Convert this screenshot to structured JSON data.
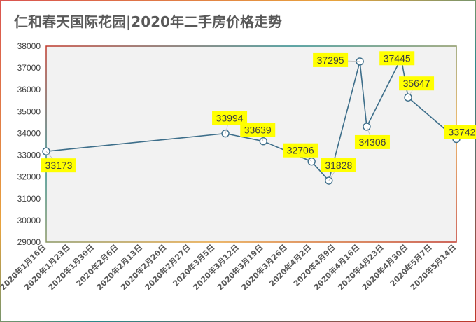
{
  "chart_data": {
    "type": "line",
    "title": "仁和春天国际花园|2020年二手房价格走势",
    "xlabel": "",
    "ylabel": "",
    "ylim": [
      29000,
      38000
    ],
    "ytick_step": 1000,
    "x_ticks": [
      "2020年1月16日",
      "2020年1月23日",
      "2020年1月30日",
      "2020年2月6日",
      "2020年2月13日",
      "2020年2月20日",
      "2020年2月27日",
      "2020年3月5日",
      "2020年3月12日",
      "2020年3月19日",
      "2020年3月26日",
      "2020年4月2日",
      "2020年4月9日",
      "2020年4月16日",
      "2020年4月23日",
      "2020年4月30日",
      "2020年5月7日",
      "2020年5月14日"
    ],
    "xlim": [
      "2020-01-16",
      "2020-05-14"
    ],
    "grid": false,
    "legend": "none",
    "series": [
      {
        "points": [
          {
            "x": "2020-01-16",
            "y": 33173
          },
          {
            "x": "2020-03-08",
            "y": 33994
          },
          {
            "x": "2020-03-19",
            "y": 33639
          },
          {
            "x": "2020-04-02",
            "y": 32706
          },
          {
            "x": "2020-04-07",
            "y": 31828
          },
          {
            "x": "2020-04-16",
            "y": 37295
          },
          {
            "x": "2020-04-18",
            "y": 34306
          },
          {
            "x": "2020-04-28",
            "y": 37445
          },
          {
            "x": "2020-04-30",
            "y": 35647
          },
          {
            "x": "2020-05-14",
            "y": 33742
          }
        ],
        "color": "#3d6e8a"
      }
    ],
    "data_labels": [
      "33173",
      "33994",
      "33639",
      "32706",
      "31828",
      "37295",
      "34306",
      "37445",
      "35647",
      "33742"
    ],
    "colors": {
      "line": "#3d6e8a",
      "marker_fill": "#ffffff",
      "label_bg": "#ffff00",
      "plot_bg": "#f2f2f2",
      "title": "#595959"
    }
  }
}
